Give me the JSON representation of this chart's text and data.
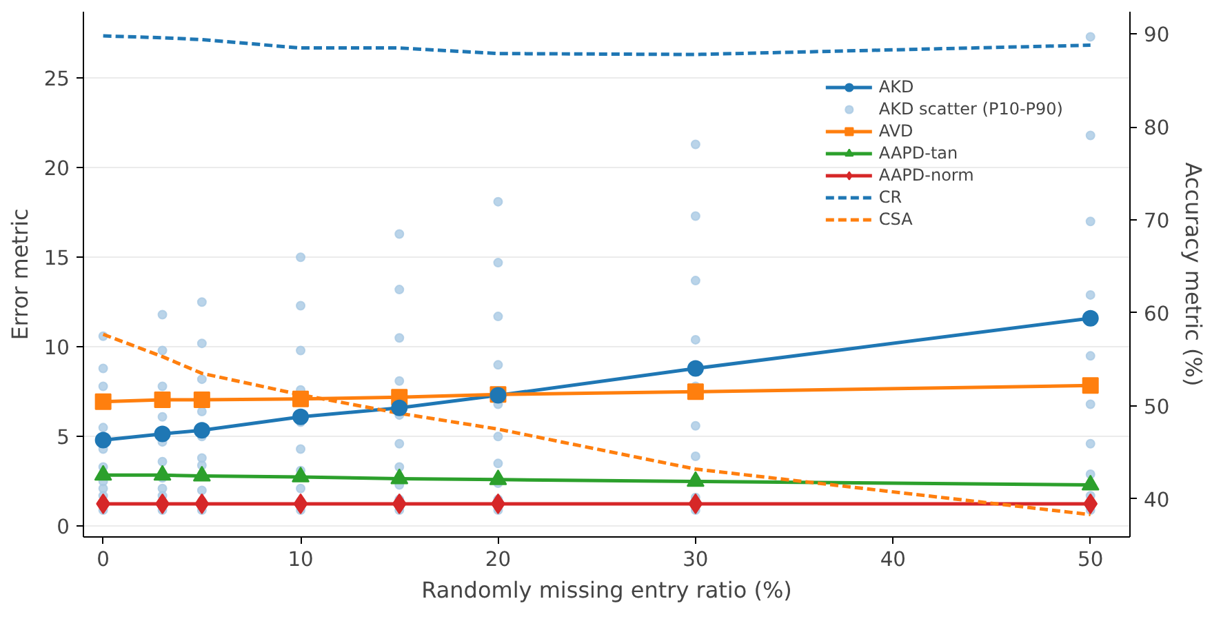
{
  "chart_data": {
    "type": "line",
    "xlabel": "Randomly missing entry ratio (%)",
    "ylabel": "Error metric",
    "y2label": "Accuracy metric (%)",
    "x": [
      0,
      3,
      5,
      10,
      15,
      20,
      30,
      50
    ],
    "xlim": [
      -1,
      52
    ],
    "xticks": [
      0,
      10,
      20,
      30,
      40,
      50
    ],
    "ylim": [
      -0.6,
      28.7
    ],
    "yticks": [
      0,
      5,
      10,
      15,
      20,
      25
    ],
    "y2lim": [
      35.9,
      92.4
    ],
    "y2ticks": [
      40,
      50,
      60,
      70,
      80,
      90
    ],
    "grid": "y",
    "legend": "top right",
    "series": [
      {
        "name": "AKD",
        "color": "#1f77b4",
        "marker": "circle",
        "line_style": "solid",
        "values": [
          4.8,
          5.15,
          5.35,
          6.1,
          6.6,
          7.3,
          8.8,
          11.6
        ]
      },
      {
        "name": "AKD scatter (P10-P90)",
        "type": "scatter",
        "color": "#a9c9e3",
        "marker": "circle",
        "x": [
          0,
          0,
          0,
          0,
          0,
          0,
          0,
          0,
          0,
          0,
          3,
          3,
          3,
          3,
          3,
          3,
          3,
          3,
          3,
          3,
          5,
          5,
          5,
          5,
          5,
          5,
          5,
          5,
          5,
          5,
          10,
          10,
          10,
          10,
          10,
          10,
          10,
          10,
          10,
          10,
          15,
          15,
          15,
          15,
          15,
          15,
          15,
          15,
          15,
          15,
          20,
          20,
          20,
          20,
          20,
          20,
          20,
          20,
          20,
          20,
          30,
          30,
          30,
          30,
          30,
          30,
          30,
          30,
          30,
          30,
          50,
          50,
          50,
          50,
          50,
          50,
          50,
          50,
          50,
          50
        ],
        "values": [
          0.9,
          1.7,
          2.1,
          2.5,
          3.3,
          4.3,
          5.5,
          7.8,
          8.8,
          10.6,
          0.9,
          1.7,
          2.1,
          2.7,
          3.6,
          4.7,
          6.1,
          7.8,
          9.8,
          11.8,
          0.9,
          1.4,
          2,
          3.4,
          3.8,
          5,
          6.4,
          8.2,
          10.2,
          12.5,
          0.9,
          1.4,
          2.1,
          3.1,
          4.3,
          5.8,
          7.6,
          9.8,
          12.3,
          15,
          0.9,
          1.5,
          2.3,
          3.3,
          4.6,
          6.2,
          8.1,
          10.5,
          13.2,
          16.3,
          0.9,
          1.5,
          2.4,
          3.5,
          5,
          6.8,
          9,
          11.7,
          14.7,
          18.1,
          0.9,
          1.6,
          2.6,
          3.9,
          5.6,
          7.8,
          10.4,
          13.7,
          17.3,
          21.3,
          0.9,
          1.7,
          2.9,
          4.6,
          6.8,
          9.5,
          12.9,
          17,
          21.8,
          27.3
        ]
      },
      {
        "name": "AVD",
        "color": "#ff7f0e",
        "marker": "square",
        "line_style": "solid",
        "values": [
          6.95,
          7.05,
          7.05,
          7.1,
          7.2,
          7.35,
          7.5,
          7.85
        ]
      },
      {
        "name": "AAPD-tan",
        "color": "#2ca02c",
        "marker": "triangle",
        "line_style": "solid",
        "values": [
          2.85,
          2.85,
          2.8,
          2.75,
          2.65,
          2.6,
          2.5,
          2.3
        ]
      },
      {
        "name": "AAPD-norm",
        "color": "#d62728",
        "marker": "diamond",
        "line_style": "solid",
        "values": [
          1.25,
          1.25,
          1.25,
          1.25,
          1.25,
          1.25,
          1.25,
          1.25
        ]
      },
      {
        "name": "CR",
        "color": "#1f77b4",
        "axis": "y2",
        "marker": "none",
        "line_style": "dashed",
        "values": [
          89.8,
          89.6,
          89.4,
          88.5,
          88.5,
          87.9,
          87.8,
          88.8
        ]
      },
      {
        "name": "CSA",
        "color": "#ff7f0e",
        "axis": "y2",
        "marker": "none",
        "line_style": "dashed",
        "values": [
          57.7,
          55.3,
          53.5,
          51.2,
          49.2,
          47.5,
          43.2,
          38.3
        ]
      }
    ]
  }
}
